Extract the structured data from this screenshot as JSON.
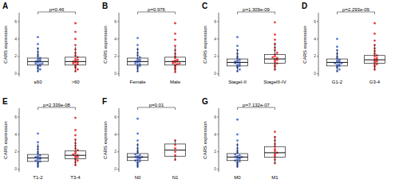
{
  "chart_data": [
    {
      "type": "box",
      "label": "A",
      "annotation": "p=0.46",
      "y_label": "CARS expression",
      "categories": [
        "≤60",
        ">60"
      ],
      "colors": [
        "#3a5fcd",
        "#e41a1c"
      ],
      "ylim": [
        -0.3,
        7
      ],
      "yticks": [
        0,
        2,
        4,
        6
      ],
      "boxes": [
        {
          "min": 0.2,
          "q1": 1.0,
          "median": 1.4,
          "q3": 1.8,
          "max": 3.0
        },
        {
          "min": 0.2,
          "q1": 1.0,
          "median": 1.4,
          "q3": 1.9,
          "max": 3.1
        }
      ],
      "points": [
        [
          0.3,
          0.5,
          0.6,
          0.8,
          0.9,
          1.0,
          1.1,
          1.2,
          1.2,
          1.3,
          1.4,
          1.4,
          1.5,
          1.6,
          1.7,
          1.8,
          2.0,
          2.2,
          2.5,
          2.9,
          3.4,
          4.2
        ],
        [
          0.3,
          0.5,
          0.7,
          0.8,
          1.0,
          1.1,
          1.2,
          1.3,
          1.3,
          1.4,
          1.5,
          1.6,
          1.7,
          1.9,
          2.1,
          2.4,
          2.8,
          3.3,
          4.0,
          4.8,
          5.8
        ]
      ]
    },
    {
      "type": "box",
      "label": "B",
      "annotation": "p=0.976",
      "y_label": "CARS expression",
      "categories": [
        "Female",
        "Male"
      ],
      "colors": [
        "#3a5fcd",
        "#e41a1c"
      ],
      "ylim": [
        -0.3,
        7
      ],
      "yticks": [
        0,
        2,
        4,
        6
      ],
      "boxes": [
        {
          "min": 0.2,
          "q1": 1.0,
          "median": 1.4,
          "q3": 1.8,
          "max": 3.0
        },
        {
          "min": 0.2,
          "q1": 1.0,
          "median": 1.4,
          "q3": 1.9,
          "max": 3.1
        }
      ],
      "points": [
        [
          0.3,
          0.6,
          0.8,
          0.9,
          1.0,
          1.1,
          1.2,
          1.3,
          1.4,
          1.4,
          1.5,
          1.6,
          1.7,
          1.9,
          2.1,
          2.4,
          2.8,
          3.3,
          4.1
        ],
        [
          0.2,
          0.5,
          0.7,
          0.9,
          1.0,
          1.1,
          1.2,
          1.2,
          1.3,
          1.4,
          1.4,
          1.5,
          1.6,
          1.8,
          2.0,
          2.3,
          2.7,
          3.2,
          3.9,
          4.6,
          5.8
        ]
      ]
    },
    {
      "type": "box",
      "label": "C",
      "annotation": "p=1.309e-09",
      "y_label": "CARS expression",
      "categories": [
        "StageI-II",
        "StageIII-IV"
      ],
      "colors": [
        "#3a5fcd",
        "#e41a1c"
      ],
      "ylim": [
        -0.3,
        7
      ],
      "yticks": [
        0,
        2,
        4,
        6
      ],
      "boxes": [
        {
          "min": 0.2,
          "q1": 0.9,
          "median": 1.3,
          "q3": 1.7,
          "max": 2.8
        },
        {
          "min": 0.4,
          "q1": 1.2,
          "median": 1.7,
          "q3": 2.2,
          "max": 3.6
        }
      ],
      "points": [
        [
          0.3,
          0.5,
          0.7,
          0.8,
          0.9,
          1.0,
          1.1,
          1.2,
          1.3,
          1.3,
          1.4,
          1.5,
          1.6,
          1.8,
          2.0,
          2.3,
          2.7,
          3.2,
          4.2
        ],
        [
          0.5,
          0.8,
          1.0,
          1.2,
          1.3,
          1.5,
          1.6,
          1.7,
          1.8,
          1.9,
          2.0,
          2.2,
          2.4,
          2.7,
          3.0,
          3.4,
          3.9,
          4.5,
          5.9
        ]
      ]
    },
    {
      "type": "box",
      "label": "D",
      "annotation": "p=2.293e-09",
      "y_label": "CARS expression",
      "categories": [
        "G1-2",
        "G3-4"
      ],
      "colors": [
        "#3a5fcd",
        "#e41a1c"
      ],
      "ylim": [
        -0.3,
        7
      ],
      "yticks": [
        0,
        2,
        4,
        6
      ],
      "boxes": [
        {
          "min": 0.2,
          "q1": 0.9,
          "median": 1.3,
          "q3": 1.7,
          "max": 2.8
        },
        {
          "min": 0.4,
          "q1": 1.2,
          "median": 1.6,
          "q3": 2.1,
          "max": 3.4
        }
      ],
      "points": [
        [
          0.3,
          0.5,
          0.7,
          0.8,
          0.9,
          1.0,
          1.1,
          1.2,
          1.2,
          1.3,
          1.4,
          1.5,
          1.6,
          1.8,
          2.0,
          2.3,
          2.7,
          3.1,
          4.0
        ],
        [
          0.5,
          0.8,
          1.0,
          1.1,
          1.3,
          1.4,
          1.5,
          1.6,
          1.7,
          1.8,
          2.0,
          2.1,
          2.3,
          2.6,
          2.9,
          3.3,
          3.8,
          4.6,
          5.8
        ]
      ]
    },
    {
      "type": "box",
      "label": "E",
      "annotation": "p=2.339e-08",
      "y_label": "CARS expression",
      "categories": [
        "T1-2",
        "T3-4"
      ],
      "colors": [
        "#3a5fcd",
        "#e41a1c"
      ],
      "ylim": [
        -0.3,
        7
      ],
      "yticks": [
        0,
        2,
        4,
        6
      ],
      "boxes": [
        {
          "min": 0.2,
          "q1": 0.9,
          "median": 1.3,
          "q3": 1.7,
          "max": 2.9
        },
        {
          "min": 0.4,
          "q1": 1.2,
          "median": 1.6,
          "q3": 2.1,
          "max": 3.4
        }
      ],
      "points": [
        [
          0.3,
          0.5,
          0.7,
          0.8,
          0.9,
          1.0,
          1.1,
          1.2,
          1.3,
          1.3,
          1.4,
          1.5,
          1.6,
          1.8,
          2.0,
          2.3,
          2.6,
          3.1,
          4.1
        ],
        [
          0.5,
          0.8,
          1.0,
          1.1,
          1.3,
          1.4,
          1.5,
          1.6,
          1.7,
          1.8,
          2.0,
          2.2,
          2.4,
          2.7,
          3.0,
          3.4,
          3.9,
          4.5,
          5.9
        ]
      ]
    },
    {
      "type": "box",
      "label": "F",
      "annotation": "p=0.01",
      "y_label": "CARS expression",
      "categories": [
        "N0",
        "N1"
      ],
      "colors": [
        "#3a5fcd",
        "#e41a1c"
      ],
      "ylim": [
        -0.3,
        7
      ],
      "yticks": [
        0,
        2,
        4,
        6
      ],
      "boxes": [
        {
          "min": 0.2,
          "q1": 1.0,
          "median": 1.4,
          "q3": 1.8,
          "max": 3.0
        },
        {
          "min": 1.0,
          "q1": 1.5,
          "median": 2.2,
          "q3": 2.9,
          "max": 3.4
        }
      ],
      "points": [
        [
          0.3,
          0.5,
          0.7,
          0.8,
          0.9,
          1.0,
          1.1,
          1.2,
          1.3,
          1.3,
          1.4,
          1.4,
          1.5,
          1.6,
          1.7,
          1.9,
          2.1,
          2.4,
          2.8,
          3.3,
          4.1,
          5.8
        ],
        [
          1.1,
          1.6,
          2.0,
          2.4,
          2.8,
          3.3
        ]
      ]
    },
    {
      "type": "box",
      "label": "G",
      "annotation": "p=7.132e-07",
      "y_label": "CARS expression",
      "categories": [
        "M0",
        "M1"
      ],
      "colors": [
        "#3a5fcd",
        "#e41a1c"
      ],
      "ylim": [
        -0.3,
        7
      ],
      "yticks": [
        0,
        2,
        4,
        6
      ],
      "boxes": [
        {
          "min": 0.2,
          "q1": 1.0,
          "median": 1.4,
          "q3": 1.8,
          "max": 3.0
        },
        {
          "min": 0.6,
          "q1": 1.4,
          "median": 1.9,
          "q3": 2.6,
          "max": 3.8
        }
      ],
      "points": [
        [
          0.3,
          0.5,
          0.7,
          0.8,
          0.9,
          1.0,
          1.1,
          1.2,
          1.3,
          1.3,
          1.4,
          1.4,
          1.5,
          1.6,
          1.7,
          1.9,
          2.1,
          2.4,
          2.8,
          3.3,
          4.0,
          5.7
        ],
        [
          0.7,
          1.1,
          1.4,
          1.6,
          1.8,
          1.9,
          2.1,
          2.3,
          2.6,
          2.9,
          3.3,
          3.7,
          4.3
        ]
      ]
    }
  ]
}
